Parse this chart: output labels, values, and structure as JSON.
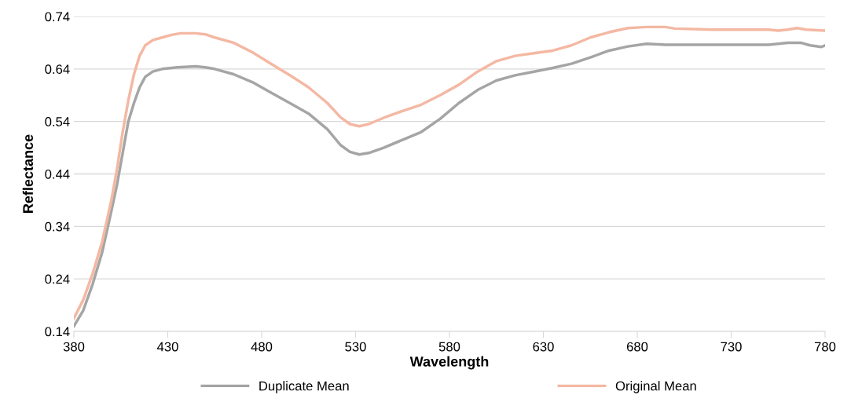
{
  "chart_data": {
    "type": "line",
    "xlabel": "Wavelength",
    "ylabel": "Reflectance",
    "xlim": [
      380,
      780
    ],
    "xticks": [
      380,
      430,
      480,
      530,
      580,
      630,
      680,
      730,
      780
    ],
    "ylim": [
      0.14,
      0.74
    ],
    "yticks": [
      {
        "value": 0.14,
        "label": "0.14"
      },
      {
        "value": 0.24,
        "label": "0.24"
      },
      {
        "value": 0.34,
        "label": "0.34"
      },
      {
        "value": 0.44,
        "label": "0.44"
      },
      {
        "value": 0.54,
        "label": "0.54"
      },
      {
        "value": 0.64,
        "label": "0.64"
      },
      {
        "value": 0.74,
        "label": "0.74"
      }
    ],
    "grid": "y",
    "legend": "bottom",
    "marker": "none",
    "line_style": "solid",
    "series": [
      {
        "name": "Duplicate Mean",
        "color": "#a5a5a5",
        "x": [
          380,
          385,
          390,
          395,
          400,
          403,
          406,
          409,
          412,
          415,
          418,
          422,
          427,
          435,
          445,
          450,
          455,
          465,
          475,
          485,
          495,
          505,
          515,
          522,
          527,
          532,
          537,
          545,
          555,
          565,
          575,
          585,
          595,
          605,
          615,
          625,
          635,
          645,
          655,
          665,
          675,
          685,
          695,
          720,
          750,
          760,
          767,
          772,
          778,
          780
        ],
        "values": [
          0.15,
          0.18,
          0.23,
          0.29,
          0.37,
          0.42,
          0.48,
          0.54,
          0.575,
          0.605,
          0.625,
          0.635,
          0.64,
          0.643,
          0.645,
          0.643,
          0.64,
          0.63,
          0.615,
          0.595,
          0.575,
          0.555,
          0.525,
          0.495,
          0.482,
          0.477,
          0.48,
          0.49,
          0.505,
          0.52,
          0.545,
          0.575,
          0.6,
          0.618,
          0.628,
          0.635,
          0.642,
          0.65,
          0.662,
          0.675,
          0.683,
          0.688,
          0.686,
          0.686,
          0.686,
          0.69,
          0.69,
          0.685,
          0.682,
          0.685
        ]
      },
      {
        "name": "Original Mean",
        "color": "#f4b8a3",
        "x": [
          380,
          385,
          390,
          395,
          400,
          403,
          406,
          409,
          412,
          415,
          418,
          422,
          427,
          432,
          437,
          445,
          450,
          455,
          465,
          475,
          485,
          495,
          505,
          515,
          522,
          527,
          532,
          537,
          545,
          555,
          565,
          575,
          585,
          595,
          605,
          615,
          625,
          635,
          645,
          655,
          665,
          675,
          685,
          695,
          700,
          720,
          750,
          755,
          760,
          765,
          770,
          780
        ],
        "values": [
          0.165,
          0.2,
          0.25,
          0.31,
          0.39,
          0.45,
          0.52,
          0.58,
          0.63,
          0.665,
          0.685,
          0.695,
          0.7,
          0.705,
          0.708,
          0.708,
          0.706,
          0.7,
          0.69,
          0.672,
          0.65,
          0.628,
          0.605,
          0.575,
          0.548,
          0.535,
          0.531,
          0.535,
          0.547,
          0.56,
          0.572,
          0.59,
          0.61,
          0.635,
          0.655,
          0.665,
          0.67,
          0.675,
          0.685,
          0.7,
          0.71,
          0.718,
          0.72,
          0.72,
          0.717,
          0.715,
          0.715,
          0.713,
          0.715,
          0.718,
          0.715,
          0.713
        ]
      }
    ]
  }
}
